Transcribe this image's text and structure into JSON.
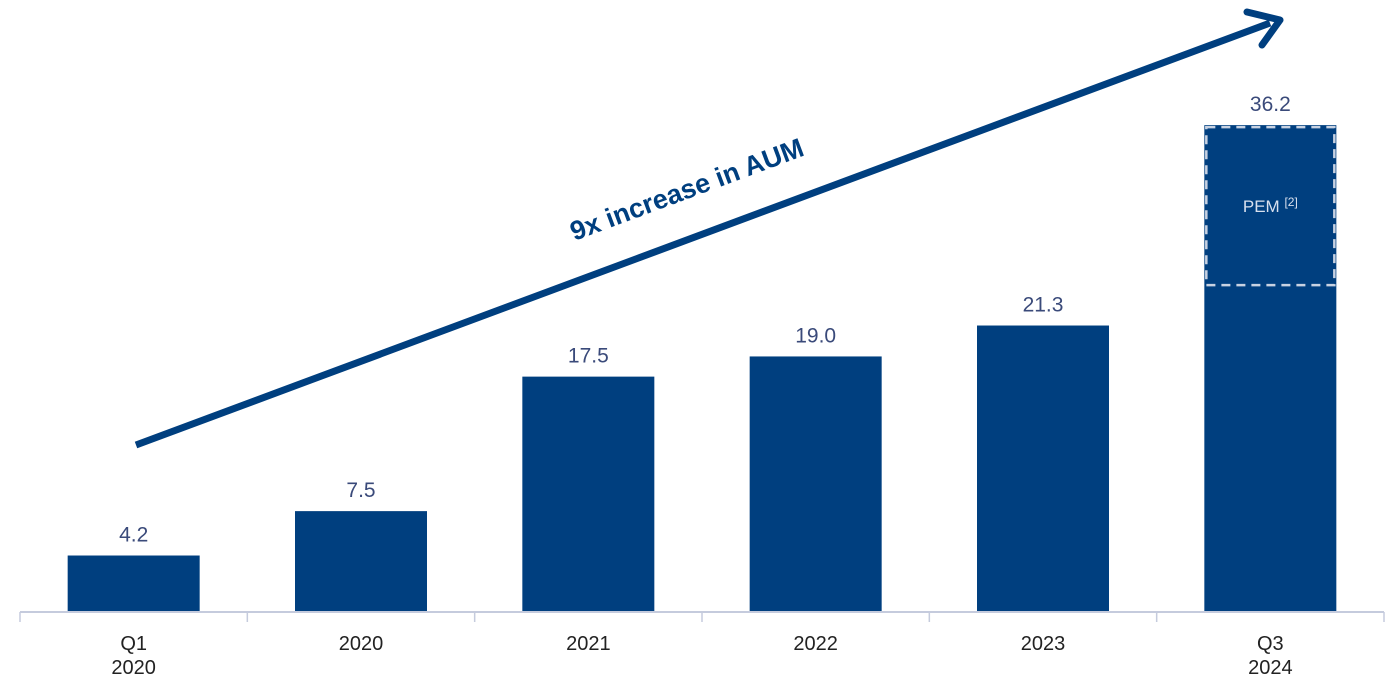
{
  "chart_data": {
    "type": "bar",
    "title": "",
    "xlabel": "",
    "ylabel": "",
    "ylim": [
      0,
      45
    ],
    "categories": [
      [
        "Q1",
        "2020"
      ],
      [
        "2020"
      ],
      [
        "2021"
      ],
      [
        "2022"
      ],
      [
        "2023"
      ],
      [
        "Q3",
        "2024"
      ]
    ],
    "values": [
      4.2,
      7.5,
      17.5,
      19.0,
      21.3,
      36.2
    ],
    "value_labels": [
      "4.2",
      "7.5",
      "17.5",
      "19.0",
      "21.3",
      "36.2"
    ],
    "segments": [
      {
        "category_index": 5,
        "label": "PEM",
        "label_sup": "[2]",
        "from": 24.3,
        "to": 36.2,
        "style": "dashed-outline"
      }
    ],
    "annotation": {
      "text": "9x increase in AUM",
      "type": "arrow"
    },
    "grid": false,
    "legend": "none",
    "colors": {
      "bar": "#003F7F",
      "label_text": "#3A4A7A",
      "axis": "#C5CBDD",
      "arrow": "#003F7F",
      "segment_dash": "#C8D2E2",
      "segment_text": "#D8E0EE"
    }
  }
}
